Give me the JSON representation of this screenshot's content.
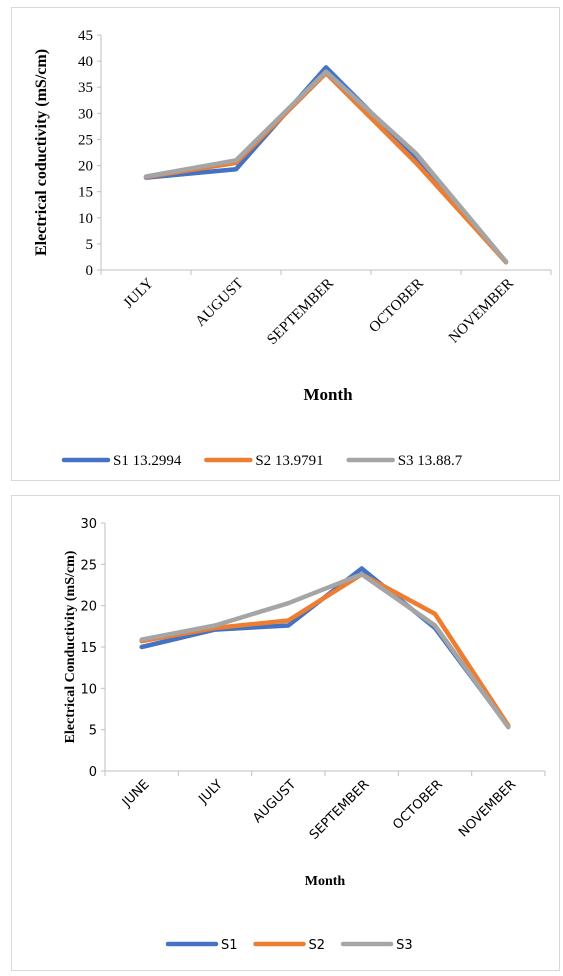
{
  "chart_data": [
    {
      "type": "line",
      "categories": [
        "JULY",
        "AUGUST",
        "SEPTEMBER",
        "OCTOBER",
        "NOVEMBER"
      ],
      "series": [
        {
          "name": "S1 13.2994",
          "color": "#4472c4",
          "values": [
            17.7,
            19.3,
            38.8,
            21.5,
            1.5
          ]
        },
        {
          "name": "S2 13.9791",
          "color": "#ed7d31",
          "values": [
            17.8,
            20.5,
            37.7,
            20.5,
            1.5
          ]
        },
        {
          "name": "S3 13.88.7",
          "color": "#a5a5a5",
          "values": [
            17.9,
            21.0,
            38.0,
            22.3,
            1.6
          ]
        }
      ],
      "xlabel": "Month",
      "ylabel": "Electrical coductivity (mS/cm)",
      "yticks": [
        "0",
        "5",
        "10",
        "15",
        "20",
        "25",
        "30",
        "35",
        "40",
        "45"
      ],
      "ylim": [
        0,
        45
      ],
      "grid": false,
      "legend": "bottom"
    },
    {
      "type": "line",
      "categories": [
        "JUNE",
        "JULY",
        "AUGUST",
        "SEPTEMBER",
        "OCTOBER",
        "NOVEMBER"
      ],
      "series": [
        {
          "name": "S1",
          "color": "#4472c4",
          "values": [
            15.0,
            17.1,
            17.6,
            24.5,
            17.3,
            5.4
          ]
        },
        {
          "name": "S2",
          "color": "#ed7d31",
          "values": [
            15.7,
            17.3,
            18.2,
            23.8,
            19.0,
            5.5
          ]
        },
        {
          "name": "S3",
          "color": "#a5a5a5",
          "values": [
            15.9,
            17.6,
            20.3,
            23.8,
            17.6,
            5.3
          ]
        }
      ],
      "xlabel": "Month",
      "ylabel": "Electrical Conductivity  (mS/cm)",
      "yticks": [
        "0",
        "5",
        "10",
        "15",
        "20",
        "25",
        "30"
      ],
      "ylim": [
        0,
        30
      ],
      "grid": false,
      "legend": "bottom"
    }
  ]
}
